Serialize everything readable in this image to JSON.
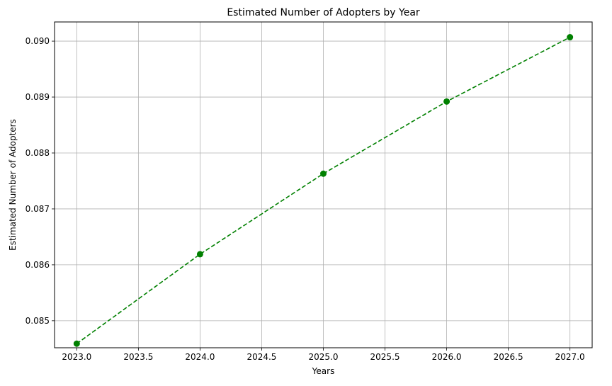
{
  "chart_data": {
    "type": "line",
    "title": "Estimated Number of Adopters by Year",
    "xlabel": "Years",
    "ylabel": "Estimated Number of Adopters",
    "xlim": [
      2022.82,
      2027.18
    ],
    "ylim": [
      0.084517,
      0.090343
    ],
    "xticks": [
      2023.0,
      2023.5,
      2024.0,
      2024.5,
      2025.0,
      2025.5,
      2026.0,
      2026.5,
      2027.0
    ],
    "xtick_labels": [
      "2023.0",
      "2023.5",
      "2024.0",
      "2024.5",
      "2025.0",
      "2025.5",
      "2026.0",
      "2026.5",
      "2027.0"
    ],
    "yticks": [
      0.085,
      0.086,
      0.087,
      0.088,
      0.089,
      0.09
    ],
    "ytick_labels": [
      "0.085",
      "0.086",
      "0.087",
      "0.088",
      "0.089",
      "0.090"
    ],
    "grid": true,
    "legend": "none",
    "series": [
      {
        "x": [
          2023,
          2024,
          2025,
          2026,
          2027
        ],
        "y": [
          0.08459,
          0.08619,
          0.08763,
          0.08892,
          0.09007
        ],
        "color": "#008000",
        "line_style": "dashed",
        "marker": "circle"
      }
    ]
  }
}
